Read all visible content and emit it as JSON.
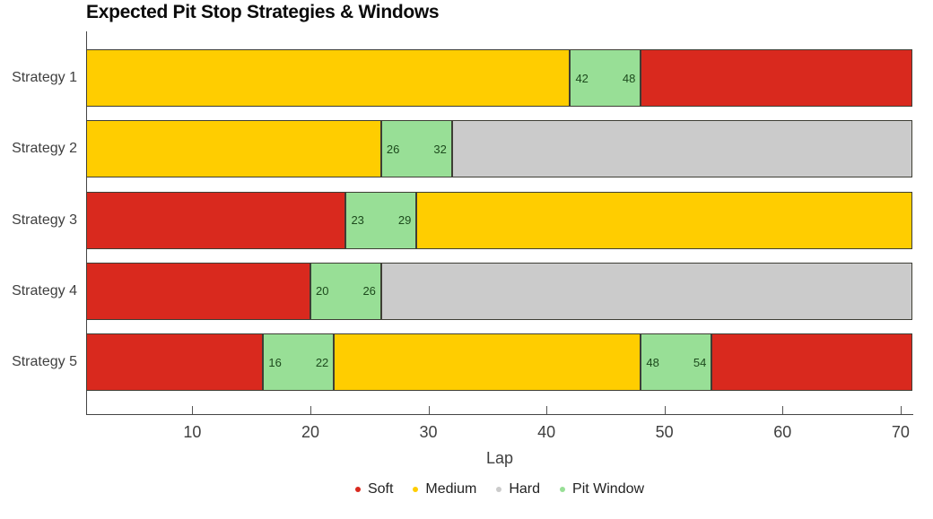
{
  "title": "Expected Pit Stop Strategies & Windows",
  "colors": {
    "soft": "#d9291e",
    "medium": "#ffcd00",
    "hard": "#cbcbcb",
    "pit_window": "#98df96",
    "pit_label_text": "#1d4a1d",
    "segment_edge": "#3e3e35",
    "axis": "#444444",
    "tick_text": "#3f3f3f"
  },
  "chart_data": {
    "type": "bar",
    "orientation": "horizontal-stacked",
    "title": "Expected Pit Stop Strategies & Windows",
    "xlabel": "Lap",
    "xlim": [
      1,
      71
    ],
    "xticks": [
      10,
      20,
      30,
      40,
      50,
      60,
      70
    ],
    "grid": false,
    "legend_position": "bottom-center",
    "legend": [
      {
        "label": "Soft",
        "color_key": "soft"
      },
      {
        "label": "Medium",
        "color_key": "medium"
      },
      {
        "label": "Hard",
        "color_key": "hard"
      },
      {
        "label": "Pit Window",
        "color_key": "pit_window"
      }
    ],
    "rows": [
      {
        "label": "Strategy 1",
        "segments": [
          {
            "type": "medium",
            "start": 1,
            "end": 42
          },
          {
            "type": "pit_window",
            "start": 42,
            "end": 48,
            "labels": [
              "42",
              "48"
            ]
          },
          {
            "type": "soft",
            "start": 48,
            "end": 71
          }
        ]
      },
      {
        "label": "Strategy 2",
        "segments": [
          {
            "type": "medium",
            "start": 1,
            "end": 26
          },
          {
            "type": "pit_window",
            "start": 26,
            "end": 32,
            "labels": [
              "26",
              "32"
            ]
          },
          {
            "type": "hard",
            "start": 32,
            "end": 71
          }
        ]
      },
      {
        "label": "Strategy 3",
        "segments": [
          {
            "type": "soft",
            "start": 1,
            "end": 23
          },
          {
            "type": "pit_window",
            "start": 23,
            "end": 29,
            "labels": [
              "23",
              "29"
            ]
          },
          {
            "type": "medium",
            "start": 29,
            "end": 71
          }
        ]
      },
      {
        "label": "Strategy 4",
        "segments": [
          {
            "type": "soft",
            "start": 1,
            "end": 20
          },
          {
            "type": "pit_window",
            "start": 20,
            "end": 26,
            "labels": [
              "20",
              "26"
            ]
          },
          {
            "type": "hard",
            "start": 26,
            "end": 71
          }
        ]
      },
      {
        "label": "Strategy 5",
        "segments": [
          {
            "type": "soft",
            "start": 1,
            "end": 16
          },
          {
            "type": "pit_window",
            "start": 16,
            "end": 22,
            "labels": [
              "16",
              "22"
            ]
          },
          {
            "type": "medium",
            "start": 22,
            "end": 48
          },
          {
            "type": "pit_window",
            "start": 48,
            "end": 54,
            "labels": [
              "48",
              "54"
            ]
          },
          {
            "type": "soft",
            "start": 54,
            "end": 71
          }
        ]
      }
    ]
  }
}
